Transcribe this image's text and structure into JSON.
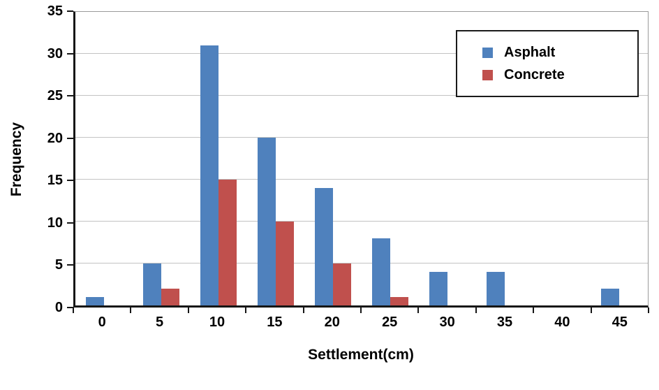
{
  "chart_data": {
    "type": "bar",
    "title": "",
    "xlabel": "Settlement(cm)",
    "ylabel": "Frequency",
    "categories": [
      "0",
      "5",
      "10",
      "15",
      "20",
      "25",
      "30",
      "35",
      "40",
      "45"
    ],
    "series": [
      {
        "name": "Asphalt",
        "color": "#4f81bd",
        "values": [
          1,
          5,
          31,
          20,
          14,
          8,
          4,
          4,
          0,
          2
        ]
      },
      {
        "name": "Concrete",
        "color": "#c0504d",
        "values": [
          0,
          2,
          15,
          10,
          5,
          1,
          0,
          0,
          0,
          0
        ]
      }
    ],
    "ylim": [
      0,
      35
    ],
    "y_ticks": [
      0,
      5,
      10,
      15,
      20,
      25,
      30,
      35
    ],
    "grid": true,
    "legend_position": "top-right"
  }
}
